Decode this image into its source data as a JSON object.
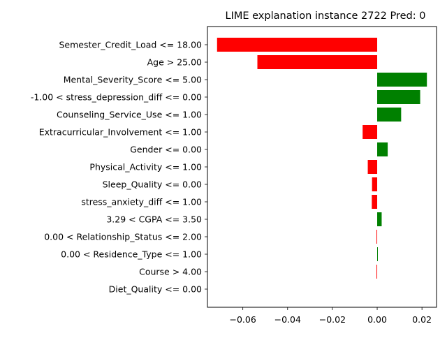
{
  "chart_data": {
    "type": "bar",
    "orientation": "horizontal",
    "title": "LIME explanation instance 2722 Pred: 0",
    "xlabel": "",
    "ylabel": "",
    "xlim": [
      -0.0758,
      0.0265
    ],
    "xticks": [
      -0.06,
      -0.04,
      -0.02,
      0.0,
      0.02
    ],
    "xtick_labels": [
      "−0.06",
      "−0.04",
      "−0.02",
      "0.00",
      "0.02"
    ],
    "grid": false,
    "legend": "none",
    "colors": {
      "positive": "#008000",
      "negative": "#ff0000"
    },
    "categories": [
      "Semester_Credit_Load <= 18.00",
      "Age > 25.00",
      "Mental_Severity_Score <= 5.00",
      "-1.00 < stress_depression_diff <= 0.00",
      "Counseling_Service_Use <= 1.00",
      "Extracurricular_Involvement <= 1.00",
      "Gender <= 0.00",
      "Physical_Activity <= 1.00",
      "Sleep_Quality <= 0.00",
      "stress_anxiety_diff <= 1.00",
      "3.29 < CGPA <= 3.50",
      "0.00 < Relationship_Status <= 2.00",
      "0.00 < Residence_Type <= 1.00",
      "Course > 4.00",
      "Diet_Quality <= 0.00"
    ],
    "values": [
      -0.0715,
      -0.0535,
      0.0222,
      0.0192,
      0.0107,
      -0.0065,
      0.0047,
      -0.0042,
      -0.0023,
      -0.0024,
      0.002,
      -0.0003,
      0.0003,
      -0.0003,
      0.0
    ]
  }
}
